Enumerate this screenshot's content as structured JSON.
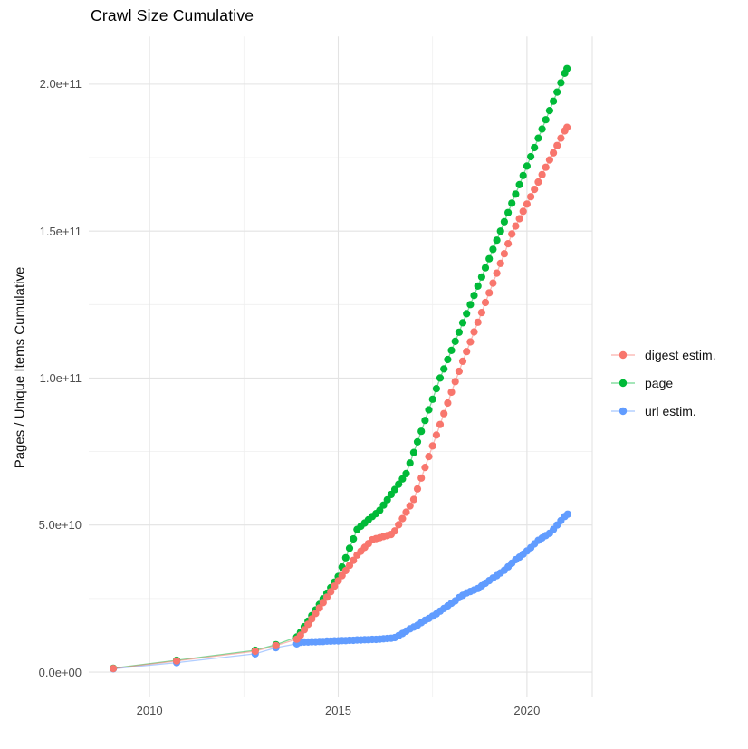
{
  "chart_data": {
    "type": "scatter",
    "title": "Crawl Size Cumulative",
    "xlabel": "",
    "ylabel": "Pages / Unique Items Cumulative",
    "x_unit": "year",
    "y_unit": "count (values below in billions, 1e9)",
    "xlim": [
      2008.39,
      2021.73
    ],
    "ylim_e9": [
      -9.3,
      216.2
    ],
    "grid": true,
    "legend_position": "right",
    "x_axis": {
      "major_ticks": [
        {
          "label": "2010",
          "year": 2010
        },
        {
          "label": "2015",
          "year": 2015
        },
        {
          "label": "2020",
          "year": 2020
        }
      ],
      "minor_years": [
        2012.5,
        2017.5
      ],
      "right_edge_line": true
    },
    "y_axis": {
      "major_ticks": [
        {
          "label": "0.0e+00",
          "value_e9": 0
        },
        {
          "label": "5.0e+10",
          "value_e9": 50
        },
        {
          "label": "1.0e+11",
          "value_e9": 100
        },
        {
          "label": "1.5e+11",
          "value_e9": 150
        },
        {
          "label": "2.0e+11",
          "value_e9": 200
        }
      ],
      "minor_values_e9": [
        25,
        75,
        125,
        175
      ]
    },
    "series": [
      {
        "name": "digest estim.",
        "color": "#F8766D",
        "points": [
          [
            2009.04,
            1.2
          ],
          [
            2010.72,
            3.8
          ],
          [
            2012.8,
            7.1
          ],
          [
            2013.35,
            9.0
          ],
          [
            2013.9,
            11.2
          ],
          [
            2014.0,
            12.5
          ],
          [
            2014.1,
            14.4
          ],
          [
            2014.2,
            16.2
          ],
          [
            2014.3,
            18.1
          ],
          [
            2014.4,
            19.9
          ],
          [
            2014.5,
            21.8
          ],
          [
            2014.6,
            23.6
          ],
          [
            2014.7,
            25.5
          ],
          [
            2014.8,
            27.3
          ],
          [
            2014.9,
            29.2
          ],
          [
            2015.0,
            31.0
          ],
          [
            2015.1,
            32.8
          ],
          [
            2015.2,
            34.5
          ],
          [
            2015.3,
            36.3
          ],
          [
            2015.4,
            38.0
          ],
          [
            2015.5,
            39.8
          ],
          [
            2015.6,
            41.1
          ],
          [
            2015.7,
            42.4
          ],
          [
            2015.8,
            43.7
          ],
          [
            2015.9,
            45.0
          ],
          [
            2016.0,
            45.4
          ],
          [
            2016.1,
            45.7
          ],
          [
            2016.2,
            46.1
          ],
          [
            2016.3,
            46.4
          ],
          [
            2016.4,
            46.8
          ],
          [
            2016.5,
            48.0
          ],
          [
            2016.6,
            50.1
          ],
          [
            2016.7,
            52.2
          ],
          [
            2016.8,
            54.4
          ],
          [
            2016.9,
            56.5
          ],
          [
            2017.0,
            58.7
          ],
          [
            2017.1,
            62.3
          ],
          [
            2017.2,
            66.0
          ],
          [
            2017.3,
            69.6
          ],
          [
            2017.4,
            73.3
          ],
          [
            2017.5,
            76.9
          ],
          [
            2017.6,
            80.6
          ],
          [
            2017.7,
            84.2
          ],
          [
            2017.8,
            87.9
          ],
          [
            2017.9,
            91.5
          ],
          [
            2018.0,
            95.2
          ],
          [
            2018.1,
            98.8
          ],
          [
            2018.2,
            102.3
          ],
          [
            2018.3,
            105.7
          ],
          [
            2018.4,
            109.0
          ],
          [
            2018.5,
            112.3
          ],
          [
            2018.6,
            115.7
          ],
          [
            2018.7,
            119.0
          ],
          [
            2018.8,
            122.3
          ],
          [
            2018.9,
            125.7
          ],
          [
            2019.0,
            129.0
          ],
          [
            2019.1,
            132.3
          ],
          [
            2019.2,
            135.7
          ],
          [
            2019.3,
            139.0
          ],
          [
            2019.4,
            142.3
          ],
          [
            2019.5,
            145.7
          ],
          [
            2019.6,
            149.0
          ],
          [
            2019.7,
            151.7
          ],
          [
            2019.8,
            154.2
          ],
          [
            2019.9,
            156.7
          ],
          [
            2020.0,
            159.2
          ],
          [
            2020.1,
            161.7
          ],
          [
            2020.2,
            164.2
          ],
          [
            2020.3,
            166.7
          ],
          [
            2020.4,
            169.2
          ],
          [
            2020.5,
            171.7
          ],
          [
            2020.6,
            174.2
          ],
          [
            2020.7,
            176.6
          ],
          [
            2020.8,
            179.1
          ],
          [
            2020.9,
            181.6
          ],
          [
            2021.0,
            184.1
          ],
          [
            2021.06,
            185.3
          ]
        ]
      },
      {
        "name": "page",
        "color": "#00BA38",
        "points": [
          [
            2009.04,
            1.3
          ],
          [
            2010.72,
            4.0
          ],
          [
            2012.8,
            7.4
          ],
          [
            2013.35,
            9.3
          ],
          [
            2013.9,
            11.9
          ],
          [
            2014.0,
            13.5
          ],
          [
            2014.1,
            15.4
          ],
          [
            2014.2,
            17.3
          ],
          [
            2014.3,
            19.2
          ],
          [
            2014.4,
            21.1
          ],
          [
            2014.5,
            23.0
          ],
          [
            2014.6,
            24.9
          ],
          [
            2014.7,
            26.8
          ],
          [
            2014.8,
            28.7
          ],
          [
            2014.9,
            30.6
          ],
          [
            2015.0,
            32.5
          ],
          [
            2015.1,
            35.7
          ],
          [
            2015.2,
            38.9
          ],
          [
            2015.3,
            42.1
          ],
          [
            2015.4,
            45.3
          ],
          [
            2015.5,
            48.5
          ],
          [
            2015.6,
            49.6
          ],
          [
            2015.7,
            50.7
          ],
          [
            2015.8,
            51.8
          ],
          [
            2015.9,
            52.9
          ],
          [
            2016.0,
            53.9
          ],
          [
            2016.1,
            55.0
          ],
          [
            2016.2,
            56.8
          ],
          [
            2016.3,
            58.6
          ],
          [
            2016.4,
            60.4
          ],
          [
            2016.5,
            62.1
          ],
          [
            2016.6,
            63.9
          ],
          [
            2016.7,
            65.7
          ],
          [
            2016.8,
            67.5
          ],
          [
            2016.9,
            71.1
          ],
          [
            2017.0,
            74.7
          ],
          [
            2017.1,
            78.3
          ],
          [
            2017.2,
            81.9
          ],
          [
            2017.3,
            85.6
          ],
          [
            2017.4,
            89.2
          ],
          [
            2017.5,
            92.8
          ],
          [
            2017.6,
            96.4
          ],
          [
            2017.7,
            100.0
          ],
          [
            2017.8,
            103.1
          ],
          [
            2017.9,
            106.3
          ],
          [
            2018.0,
            109.4
          ],
          [
            2018.1,
            112.5
          ],
          [
            2018.2,
            115.6
          ],
          [
            2018.3,
            118.8
          ],
          [
            2018.4,
            121.9
          ],
          [
            2018.5,
            125.0
          ],
          [
            2018.6,
            128.1
          ],
          [
            2018.7,
            131.3
          ],
          [
            2018.8,
            134.4
          ],
          [
            2018.9,
            137.5
          ],
          [
            2019.0,
            140.6
          ],
          [
            2019.1,
            143.8
          ],
          [
            2019.2,
            146.9
          ],
          [
            2019.3,
            150.0
          ],
          [
            2019.4,
            153.2
          ],
          [
            2019.5,
            156.3
          ],
          [
            2019.6,
            159.5
          ],
          [
            2019.7,
            162.6
          ],
          [
            2019.8,
            165.8
          ],
          [
            2019.9,
            168.9
          ],
          [
            2020.0,
            172.1
          ],
          [
            2020.1,
            175.3
          ],
          [
            2020.2,
            178.4
          ],
          [
            2020.3,
            181.6
          ],
          [
            2020.4,
            184.7
          ],
          [
            2020.5,
            187.9
          ],
          [
            2020.6,
            191.0
          ],
          [
            2020.7,
            194.2
          ],
          [
            2020.8,
            197.3
          ],
          [
            2020.9,
            200.5
          ],
          [
            2021.0,
            203.7
          ],
          [
            2021.06,
            205.3
          ]
        ]
      },
      {
        "name": "url estim.",
        "color": "#619CFF",
        "points": [
          [
            2009.04,
            1.1
          ],
          [
            2010.72,
            3.2
          ],
          [
            2012.8,
            6.2
          ],
          [
            2013.35,
            8.3
          ],
          [
            2013.9,
            9.6
          ],
          [
            2014.0,
            10.1
          ],
          [
            2014.1,
            10.2
          ],
          [
            2014.2,
            10.2
          ],
          [
            2014.3,
            10.3
          ],
          [
            2014.4,
            10.3
          ],
          [
            2014.5,
            10.4
          ],
          [
            2014.6,
            10.4
          ],
          [
            2014.7,
            10.5
          ],
          [
            2014.8,
            10.5
          ],
          [
            2014.9,
            10.6
          ],
          [
            2015.0,
            10.6
          ],
          [
            2015.1,
            10.7
          ],
          [
            2015.2,
            10.7
          ],
          [
            2015.3,
            10.8
          ],
          [
            2015.4,
            10.8
          ],
          [
            2015.5,
            10.9
          ],
          [
            2015.6,
            10.9
          ],
          [
            2015.7,
            11.0
          ],
          [
            2015.8,
            11.0
          ],
          [
            2015.9,
            11.1
          ],
          [
            2016.0,
            11.1
          ],
          [
            2016.1,
            11.2
          ],
          [
            2016.2,
            11.3
          ],
          [
            2016.3,
            11.4
          ],
          [
            2016.4,
            11.5
          ],
          [
            2016.5,
            11.7
          ],
          [
            2016.6,
            12.4
          ],
          [
            2016.7,
            13.1
          ],
          [
            2016.8,
            13.9
          ],
          [
            2016.9,
            14.7
          ],
          [
            2017.0,
            15.3
          ],
          [
            2017.1,
            15.9
          ],
          [
            2017.2,
            16.8
          ],
          [
            2017.3,
            17.6
          ],
          [
            2017.4,
            18.2
          ],
          [
            2017.5,
            19.0
          ],
          [
            2017.6,
            19.8
          ],
          [
            2017.7,
            20.7
          ],
          [
            2017.8,
            21.6
          ],
          [
            2017.9,
            22.5
          ],
          [
            2018.0,
            23.4
          ],
          [
            2018.1,
            24.2
          ],
          [
            2018.2,
            25.3
          ],
          [
            2018.3,
            26.1
          ],
          [
            2018.4,
            26.9
          ],
          [
            2018.5,
            27.4
          ],
          [
            2018.6,
            27.9
          ],
          [
            2018.7,
            28.4
          ],
          [
            2018.8,
            29.3
          ],
          [
            2018.9,
            30.2
          ],
          [
            2019.0,
            31.1
          ],
          [
            2019.1,
            32.0
          ],
          [
            2019.2,
            32.8
          ],
          [
            2019.3,
            33.7
          ],
          [
            2019.4,
            34.6
          ],
          [
            2019.5,
            35.8
          ],
          [
            2019.6,
            37.0
          ],
          [
            2019.7,
            38.2
          ],
          [
            2019.8,
            39.1
          ],
          [
            2019.9,
            40.1
          ],
          [
            2020.0,
            41.2
          ],
          [
            2020.1,
            42.3
          ],
          [
            2020.2,
            43.6
          ],
          [
            2020.3,
            44.8
          ],
          [
            2020.4,
            45.6
          ],
          [
            2020.5,
            46.4
          ],
          [
            2020.6,
            47.2
          ],
          [
            2020.7,
            48.5
          ],
          [
            2020.8,
            50.0
          ],
          [
            2020.9,
            51.5
          ],
          [
            2021.0,
            52.9
          ],
          [
            2021.08,
            53.7
          ]
        ]
      }
    ],
    "draw_order": [
      "url estim.",
      "page",
      "digest estim."
    ]
  },
  "legend": {
    "entries": [
      {
        "label": "digest estim.",
        "color": "#F8766D"
      },
      {
        "label": "page",
        "color": "#00BA38"
      },
      {
        "label": "url estim.",
        "color": "#619CFF"
      }
    ]
  },
  "colors": {
    "background": "#FFFFFF",
    "major_grid": "#E3E3E3",
    "minor_grid": "#EFEFEF",
    "tick_label": "#4D4D4D",
    "text": "#000000"
  }
}
